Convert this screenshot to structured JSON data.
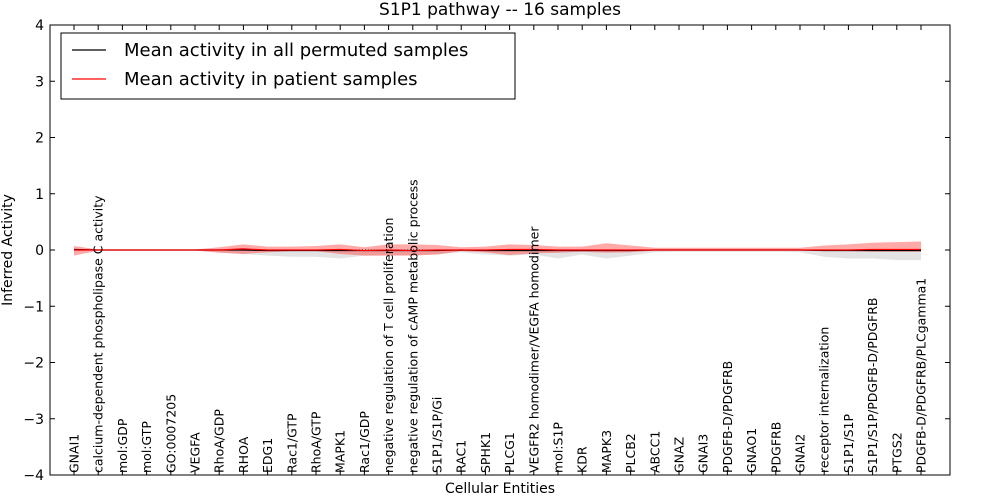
{
  "chart_data": {
    "type": "line",
    "title": "S1P1 pathway -- 16 samples",
    "xlabel": "Cellular Entities",
    "ylabel": "Inferred Activity",
    "ylim": [
      -4,
      4
    ],
    "yticks": [
      4,
      3,
      2,
      1,
      0,
      -1,
      -2,
      -3,
      -4
    ],
    "ytick_labels": [
      "4",
      "3",
      "2",
      "1",
      "0",
      "−1",
      "−2",
      "−3",
      "−4"
    ],
    "legend_position": "top-left",
    "categories": [
      "GNAI1",
      "calcium-dependent phospholipase C activity",
      "mol:GDP",
      "mol:GTP",
      "GO:0007205",
      "VEGFA",
      "RhoA/GDP",
      "RHOA",
      "EDG1",
      "Rac1/GTP",
      "RhoA/GTP",
      "MAPK1",
      "Rac1/GDP",
      "negative regulation of T cell proliferation",
      "negative regulation of cAMP metabolic process",
      "S1P1/S1P/Gi",
      "RAC1",
      "SPHK1",
      "PLCG1",
      "VEGFR2 homodimer/VEGFA homodimer",
      "mol:S1P",
      "KDR",
      "MAPK3",
      "PLCB2",
      "ABCC1",
      "GNAZ",
      "GNAI3",
      "PDGFB-D/PDGFRB",
      "GNAO1",
      "PDGFRB",
      "GNAI2",
      "receptor internalization",
      "S1P1/S1P",
      "S1P1/S1P/PDGFB-D/PDGFRB",
      "PTGS2",
      "PDGFB-D/PDGFRB/PLCgamma1"
    ],
    "series": [
      {
        "name": "Mean activity in all permuted samples",
        "color": "#000000",
        "values": [
          0.01,
          0,
          0,
          0,
          0,
          0,
          0,
          0,
          -0.01,
          -0.01,
          -0.01,
          -0.01,
          -0.01,
          -0.01,
          -0.01,
          -0.01,
          0,
          -0.01,
          -0.01,
          -0.01,
          -0.01,
          -0.01,
          -0.01,
          -0.01,
          0,
          0,
          0,
          0,
          0,
          0,
          0,
          -0.01,
          -0.01,
          -0.01,
          -0.01,
          -0.01
        ],
        "band_upper": [
          0.02,
          0.01,
          0.01,
          0.01,
          0.01,
          0.01,
          0.01,
          0.01,
          0.01,
          0.01,
          0.01,
          0.01,
          0.01,
          0.01,
          0.01,
          0.01,
          0.01,
          0.01,
          0.01,
          0.01,
          0.01,
          0.01,
          0.01,
          0.01,
          0.01,
          0.01,
          0.01,
          0.01,
          0.01,
          0.01,
          0.01,
          0.01,
          0.01,
          0.01,
          0.01,
          0.01
        ],
        "band_lower": [
          -0.02,
          -0.01,
          -0.01,
          -0.01,
          -0.01,
          -0.01,
          -0.04,
          -0.07,
          -0.1,
          -0.12,
          -0.12,
          -0.15,
          -0.1,
          -0.09,
          -0.09,
          -0.08,
          -0.04,
          -0.08,
          -0.1,
          -0.08,
          -0.15,
          -0.08,
          -0.15,
          -0.1,
          -0.04,
          -0.03,
          -0.03,
          -0.03,
          -0.03,
          -0.03,
          -0.04,
          -0.12,
          -0.15,
          -0.15,
          -0.18,
          -0.18
        ]
      },
      {
        "name": "Mean activity in patient samples",
        "color": "#ff0000",
        "values": [
          0,
          0,
          0,
          0,
          0,
          0,
          0,
          0.02,
          0,
          0,
          0,
          0.01,
          -0.01,
          0,
          -0.01,
          0,
          0,
          0,
          0.01,
          0.01,
          0,
          0,
          0,
          0,
          0,
          0,
          0,
          0,
          0,
          0,
          0,
          0,
          0,
          0.01,
          0.01,
          0.01
        ],
        "band_upper": [
          0.07,
          0.01,
          0.01,
          0.01,
          0.01,
          0.01,
          0.05,
          0.1,
          0.06,
          0.06,
          0.07,
          0.1,
          0.05,
          0.1,
          0.1,
          0.09,
          0.05,
          0.06,
          0.1,
          0.09,
          0.06,
          0.06,
          0.12,
          0.08,
          0.04,
          0.04,
          0.04,
          0.04,
          0.04,
          0.04,
          0.04,
          0.08,
          0.1,
          0.13,
          0.14,
          0.15
        ],
        "band_lower": [
          -0.1,
          -0.01,
          -0.01,
          -0.01,
          -0.01,
          -0.01,
          -0.05,
          -0.07,
          -0.04,
          -0.02,
          -0.02,
          -0.07,
          -0.1,
          -0.1,
          -0.1,
          -0.08,
          -0.02,
          -0.04,
          -0.09,
          -0.06,
          -0.05,
          -0.03,
          -0.05,
          -0.04,
          -0.01,
          -0.01,
          -0.01,
          -0.01,
          -0.01,
          -0.01,
          -0.01,
          -0.02,
          -0.02,
          -0.03,
          -0.03,
          -0.03
        ]
      }
    ]
  }
}
